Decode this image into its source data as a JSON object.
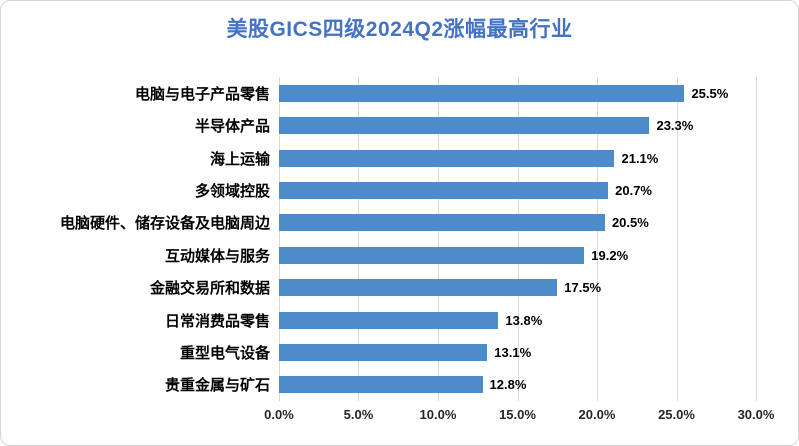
{
  "chart_data": {
    "type": "bar",
    "orientation": "horizontal",
    "title": "美股GICS四级2024Q2涨幅最高行业",
    "categories": [
      "电脑与电子产品零售",
      "半导体产品",
      "海上运输",
      "多领域控股",
      "电脑硬件、储存设备及电脑周边",
      "互动媒体与服务",
      "金融交易所和数据",
      "日常消费品零售",
      "重型电气设备",
      "贵重金属与矿石"
    ],
    "values": [
      25.5,
      23.3,
      21.1,
      20.7,
      20.5,
      19.2,
      17.5,
      13.8,
      13.1,
      12.8
    ],
    "data_labels": [
      "25.5%",
      "23.3%",
      "21.1%",
      "20.7%",
      "20.5%",
      "19.2%",
      "17.5%",
      "13.8%",
      "13.1%",
      "12.8%"
    ],
    "xlabel": "",
    "ylabel": "",
    "xlim": [
      0,
      30
    ],
    "x_ticks": [
      "0.0%",
      "5.0%",
      "10.0%",
      "15.0%",
      "20.0%",
      "25.0%",
      "30.0%"
    ],
    "x_tick_values": [
      0,
      5,
      10,
      15,
      20,
      25,
      30
    ],
    "grid": true,
    "legend": false,
    "bar_color": "#4d8bc9",
    "title_color": "#4472c4",
    "gridline_color": "#d9d9d9"
  }
}
